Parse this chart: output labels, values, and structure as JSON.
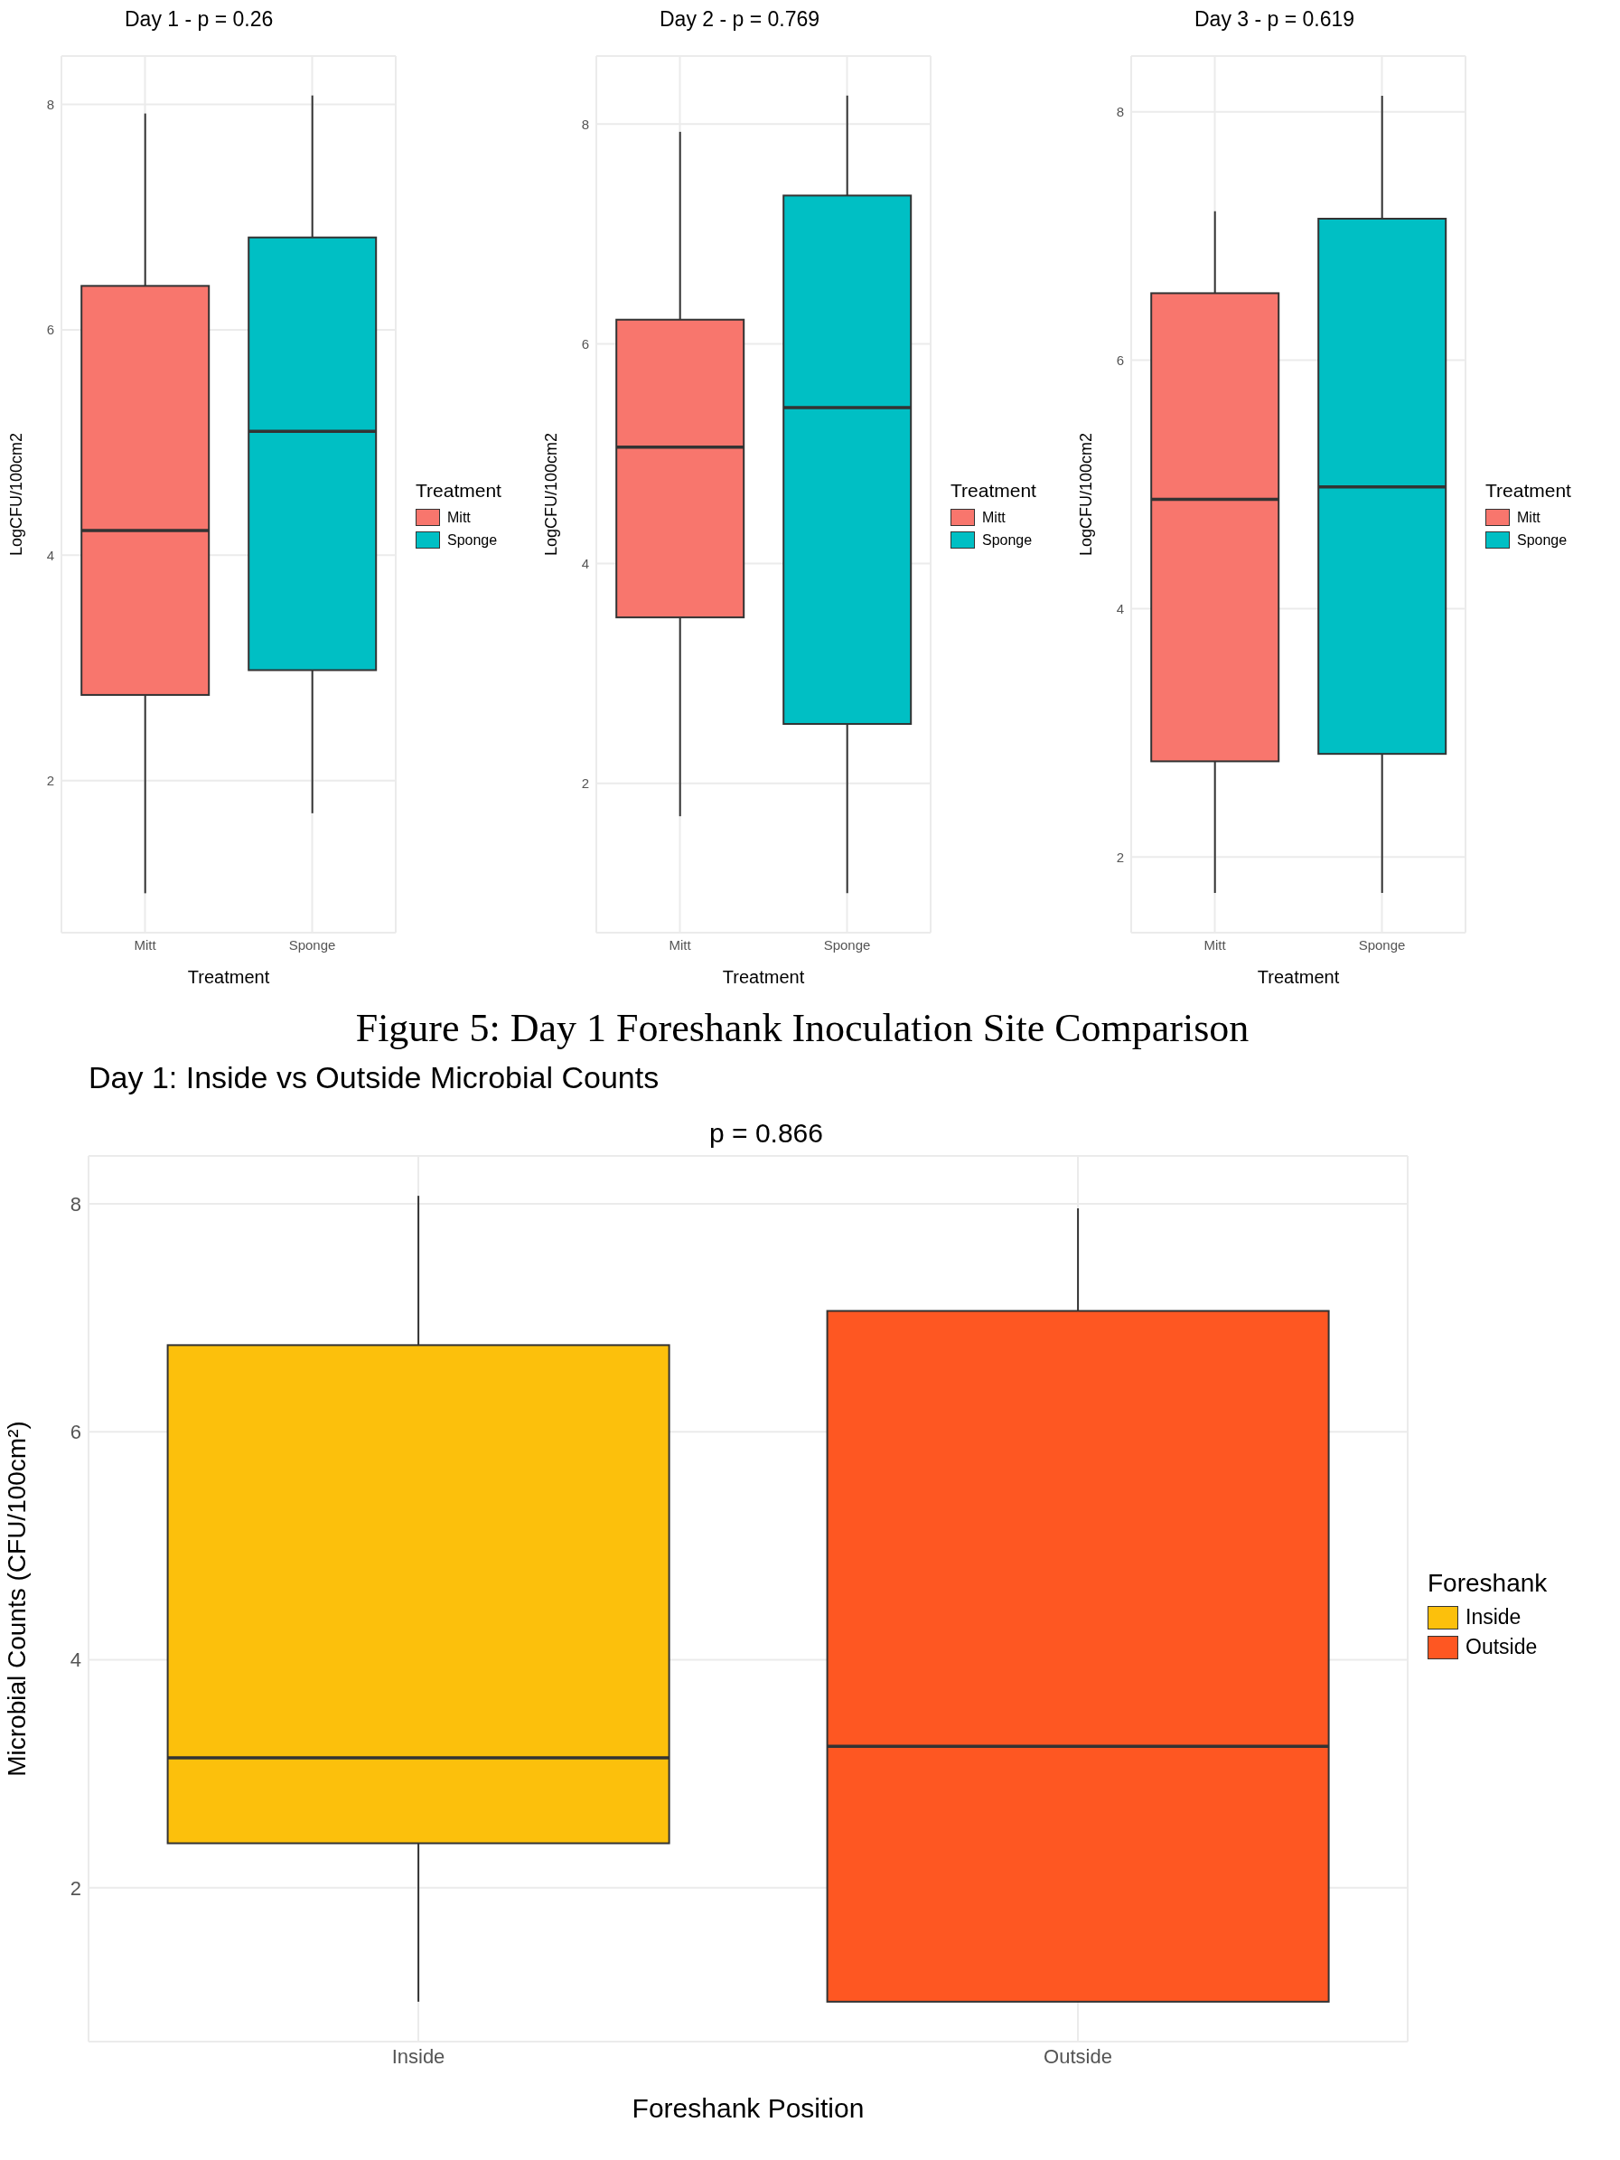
{
  "chart_data": [
    {
      "type": "box",
      "title": "Day 1 - p = 0.26",
      "xlabel": "Treatment",
      "ylabel": "LogCFU/100cm2",
      "legend_title": "Treatment",
      "legend": "right",
      "grid": true,
      "categories": [
        "Mitt",
        "Sponge"
      ],
      "series": [
        {
          "name": "Mitt",
          "color": "#f8766d",
          "boxes": [
            {
              "low": 1.0,
              "q1": 2.76,
              "median": 4.22,
              "q3": 6.39,
              "high": 7.92
            },
            null
          ]
        },
        {
          "name": "Sponge",
          "color": "#00bfc4",
          "boxes": [
            null,
            {
              "low": 1.71,
              "q1": 2.98,
              "median": 5.1,
              "q3": 6.82,
              "high": 8.08
            }
          ]
        }
      ],
      "ylim": [
        0.65,
        8.43
      ],
      "yticks": [
        2,
        4,
        6,
        8
      ]
    },
    {
      "type": "box",
      "title": "Day 2 - p = 0.769",
      "xlabel": "Treatment",
      "ylabel": "LogCFU/100cm2",
      "legend_title": "Treatment",
      "legend": "right",
      "grid": true,
      "categories": [
        "Mitt",
        "Sponge"
      ],
      "series": [
        {
          "name": "Mitt",
          "color": "#f8766d",
          "boxes": [
            {
              "low": 1.7,
              "q1": 3.51,
              "median": 5.06,
              "q3": 6.22,
              "high": 7.93
            },
            null
          ]
        },
        {
          "name": "Sponge",
          "color": "#00bfc4",
          "boxes": [
            null,
            {
              "low": 1.0,
              "q1": 2.54,
              "median": 5.42,
              "q3": 7.35,
              "high": 8.26
            }
          ]
        }
      ],
      "ylim": [
        0.64,
        8.62
      ],
      "yticks": [
        2,
        4,
        6,
        8
      ]
    },
    {
      "type": "box",
      "title": "Day 3 - p = 0.619",
      "xlabel": "Treatment",
      "ylabel": "LogCFU/100cm2",
      "legend_title": "Treatment",
      "legend": "right",
      "grid": true,
      "categories": [
        "Mitt",
        "Sponge"
      ],
      "series": [
        {
          "name": "Mitt",
          "color": "#f8766d",
          "boxes": [
            {
              "low": 1.71,
              "q1": 2.77,
              "median": 4.88,
              "q3": 6.54,
              "high": 7.2
            },
            null
          ]
        },
        {
          "name": "Sponge",
          "color": "#00bfc4",
          "boxes": [
            null,
            {
              "low": 1.71,
              "q1": 2.83,
              "median": 4.98,
              "q3": 7.14,
              "high": 8.13
            }
          ]
        }
      ],
      "ylim": [
        1.39,
        8.45
      ],
      "yticks": [
        2,
        4,
        6,
        8
      ]
    },
    {
      "type": "box",
      "title": "Day 1: Inside vs Outside Microbial Counts",
      "xlabel": "Foreshank Position",
      "ylabel": "Microbial Counts (CFU/100cm²)",
      "legend_title": "Foreshank",
      "legend": "right",
      "grid": true,
      "categories": [
        "Inside",
        "Outside"
      ],
      "series": [
        {
          "name": "Inside",
          "color": "#fcc00c",
          "boxes": [
            {
              "low": 1.0,
              "q1": 2.39,
              "median": 3.14,
              "q3": 6.76,
              "high": 8.07
            },
            null
          ]
        },
        {
          "name": "Outside",
          "color": "#fe5722",
          "boxes": [
            null,
            {
              "low": 1.0,
              "q1": 1.0,
              "median": 3.24,
              "q3": 7.06,
              "high": 7.96
            }
          ]
        }
      ],
      "ylim": [
        0.65,
        8.42
      ],
      "yticks": [
        2,
        4,
        6,
        8
      ],
      "annotations": [
        "Figure 5: Day 1 Foreshank Inoculation Site Comparison",
        "p = 0.866"
      ]
    }
  ]
}
